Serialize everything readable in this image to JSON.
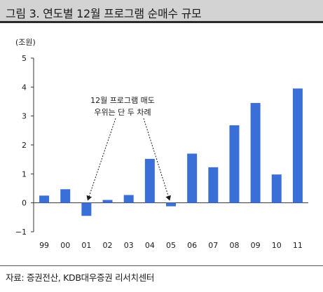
{
  "title": "그림 3. 연도별 12월 프로그램 순매수 규모",
  "source": "자료: 증권전산, KDB대우증권 리서치센터",
  "chart_data": {
    "type": "bar",
    "unit_label": "(조원)",
    "categories": [
      "99",
      "00",
      "01",
      "02",
      "03",
      "04",
      "05",
      "06",
      "07",
      "08",
      "09",
      "10",
      "11"
    ],
    "values": [
      0.25,
      0.47,
      -0.45,
      0.1,
      0.27,
      1.52,
      -0.12,
      1.7,
      1.23,
      2.68,
      3.45,
      0.98,
      3.95
    ],
    "ylim": [
      -1,
      5
    ],
    "yticks": [
      -1,
      0,
      1,
      2,
      3,
      4,
      5
    ],
    "bar_color": "#3b6fd8",
    "annotation": {
      "lines": [
        "12월 프로그램 매도",
        "우위는 단 두 차례"
      ],
      "targets": [
        "01",
        "05"
      ]
    }
  }
}
